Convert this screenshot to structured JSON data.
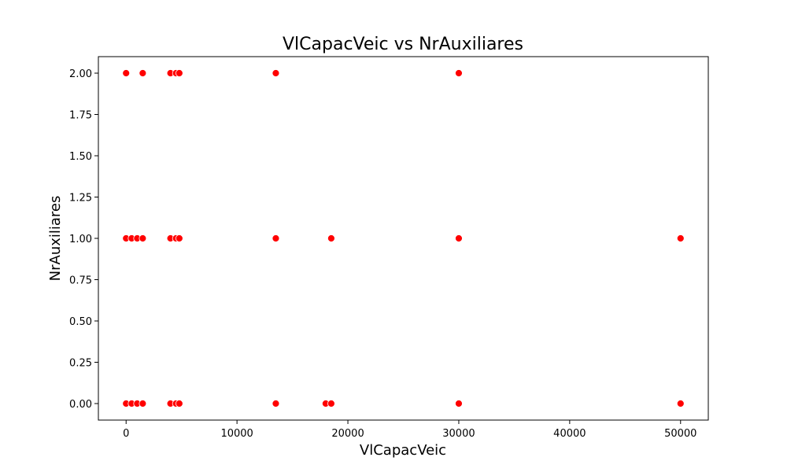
{
  "chart_data": {
    "type": "scatter",
    "title": "VlCapacVeic vs NrAuxiliares",
    "xlabel": "VlCapacVeic",
    "ylabel": "NrAuxiliares",
    "xlim": [
      -2500,
      52500
    ],
    "ylim": [
      -0.1,
      2.1
    ],
    "xticks": [
      0,
      10000,
      20000,
      30000,
      40000,
      50000
    ],
    "xtick_labels": [
      "0",
      "10000",
      "20000",
      "30000",
      "40000",
      "50000"
    ],
    "yticks": [
      0.0,
      0.25,
      0.5,
      0.75,
      1.0,
      1.25,
      1.5,
      1.75,
      2.0
    ],
    "ytick_labels": [
      "0.00",
      "0.25",
      "0.50",
      "0.75",
      "1.00",
      "1.25",
      "1.50",
      "1.75",
      "2.00"
    ],
    "grid": false,
    "marker_color": "#ff0000",
    "marker_edge_color": "#ffffff",
    "points": [
      {
        "x": 0,
        "y": 2
      },
      {
        "x": 1500,
        "y": 2
      },
      {
        "x": 4000,
        "y": 2
      },
      {
        "x": 4500,
        "y": 2
      },
      {
        "x": 4800,
        "y": 2
      },
      {
        "x": 13500,
        "y": 2
      },
      {
        "x": 30000,
        "y": 2
      },
      {
        "x": 0,
        "y": 1
      },
      {
        "x": 500,
        "y": 1
      },
      {
        "x": 1000,
        "y": 1
      },
      {
        "x": 1500,
        "y": 1
      },
      {
        "x": 4000,
        "y": 1
      },
      {
        "x": 4500,
        "y": 1
      },
      {
        "x": 4800,
        "y": 1
      },
      {
        "x": 13500,
        "y": 1
      },
      {
        "x": 18500,
        "y": 1
      },
      {
        "x": 30000,
        "y": 1
      },
      {
        "x": 50000,
        "y": 1
      },
      {
        "x": 0,
        "y": 0
      },
      {
        "x": 500,
        "y": 0
      },
      {
        "x": 1000,
        "y": 0
      },
      {
        "x": 1500,
        "y": 0
      },
      {
        "x": 4000,
        "y": 0
      },
      {
        "x": 4500,
        "y": 0
      },
      {
        "x": 4800,
        "y": 0
      },
      {
        "x": 13500,
        "y": 0
      },
      {
        "x": 18000,
        "y": 0
      },
      {
        "x": 18500,
        "y": 0
      },
      {
        "x": 30000,
        "y": 0
      },
      {
        "x": 50000,
        "y": 0
      }
    ]
  }
}
